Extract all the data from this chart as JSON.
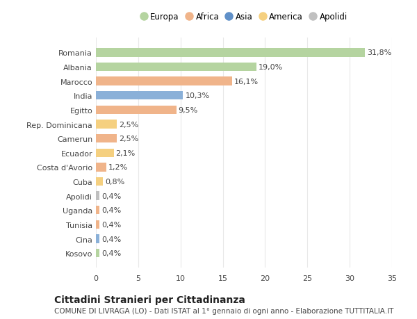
{
  "categories": [
    "Kosovo",
    "Cina",
    "Tunisia",
    "Uganda",
    "Apolidi",
    "Cuba",
    "Costa d'Avorio",
    "Ecuador",
    "Camerun",
    "Rep. Dominicana",
    "Egitto",
    "India",
    "Marocco",
    "Albania",
    "Romania"
  ],
  "values": [
    0.4,
    0.4,
    0.4,
    0.4,
    0.4,
    0.8,
    1.2,
    2.1,
    2.5,
    2.5,
    9.5,
    10.3,
    16.1,
    19.0,
    31.8
  ],
  "labels": [
    "0,4%",
    "0,4%",
    "0,4%",
    "0,4%",
    "0,4%",
    "0,8%",
    "1,2%",
    "2,1%",
    "2,5%",
    "2,5%",
    "9,5%",
    "10,3%",
    "16,1%",
    "19,0%",
    "31,8%"
  ],
  "colors": [
    "#b5d4a0",
    "#8ab0d8",
    "#f0b48a",
    "#f0b48a",
    "#c0c0c0",
    "#f5d080",
    "#f0b48a",
    "#f5d080",
    "#f0b48a",
    "#f5d080",
    "#f0b48a",
    "#8ab0d8",
    "#f0b48a",
    "#b5d4a0",
    "#b5d4a0"
  ],
  "legend": [
    {
      "label": "Europa",
      "color": "#b5d4a0"
    },
    {
      "label": "Africa",
      "color": "#f0b48a"
    },
    {
      "label": "Asia",
      "color": "#6090c8"
    },
    {
      "label": "America",
      "color": "#f5d080"
    },
    {
      "label": "Apolidi",
      "color": "#c0c0c0"
    }
  ],
  "xlim": [
    0,
    35
  ],
  "xticks": [
    0,
    5,
    10,
    15,
    20,
    25,
    30,
    35
  ],
  "title": "Cittadini Stranieri per Cittadinanza",
  "subtitle": "COMUNE DI LIVRAGA (LO) - Dati ISTAT al 1° gennaio di ogni anno - Elaborazione TUTTITALIA.IT",
  "background_color": "#ffffff",
  "grid_color": "#e8e8e8",
  "bar_height": 0.6,
  "text_color": "#444444",
  "title_fontsize": 10,
  "subtitle_fontsize": 7.5,
  "label_fontsize": 8,
  "tick_fontsize": 8
}
